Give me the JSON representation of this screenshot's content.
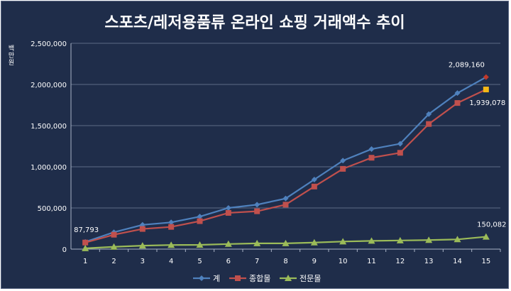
{
  "chart_data": {
    "type": "line",
    "title": "스포츠/레저용품류 온라인 쇼핑 거래액수 추이",
    "ylabel": "백만원",
    "xlabel": "",
    "x": [
      1,
      2,
      3,
      4,
      5,
      6,
      7,
      8,
      9,
      10,
      11,
      12,
      13,
      14,
      15
    ],
    "ylim": [
      0,
      2500000
    ],
    "yticks": [
      "0",
      "500,000",
      "1,000,000",
      "1,500,000",
      "2,000,000",
      "2,500,000"
    ],
    "grid": true,
    "legend_position": "bottom",
    "series": [
      {
        "name": "계",
        "color": "#4f81bd",
        "marker": "diamond",
        "values": [
          87793,
          205000,
          295000,
          325000,
          395000,
          500000,
          540000,
          615000,
          845000,
          1075000,
          1215000,
          1280000,
          1640000,
          1895000,
          2089160
        ]
      },
      {
        "name": "종합몰",
        "color": "#c0504d",
        "marker": "square",
        "values": [
          80000,
          175000,
          245000,
          270000,
          340000,
          440000,
          460000,
          540000,
          760000,
          975000,
          1110000,
          1170000,
          1520000,
          1775000,
          1939078
        ]
      },
      {
        "name": "전문몰",
        "color": "#9bbb59",
        "marker": "triangle",
        "values": [
          10000,
          28000,
          42000,
          50000,
          52000,
          62000,
          70000,
          70000,
          80000,
          92000,
          100000,
          105000,
          110000,
          118000,
          150082
        ]
      }
    ],
    "data_labels": [
      {
        "text": "87,793"
      },
      {
        "text": "2,089,160"
      },
      {
        "text": "1,939,078"
      },
      {
        "text": "150,082"
      }
    ]
  }
}
